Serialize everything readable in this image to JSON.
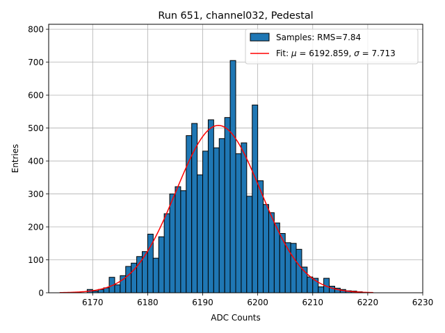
{
  "chart_data": {
    "type": "bar",
    "title": "Run 651, channel032, Pedestal",
    "xlabel": "ADC Counts",
    "ylabel": "Entries",
    "xlim": [
      6162,
      6230
    ],
    "ylim": [
      0,
      815
    ],
    "xticks": [
      6170,
      6180,
      6190,
      6200,
      6210,
      6220,
      6230
    ],
    "yticks": [
      0,
      100,
      200,
      300,
      400,
      500,
      600,
      700,
      800
    ],
    "grid": true,
    "legend_position": "top-right",
    "legend": {
      "samples_label": "Samples: RMS=7.84",
      "fit_prefix": "Fit: ",
      "mu_symbol": "μ",
      "fit_mu_text": " = 6192.859, ",
      "sigma_symbol": "σ",
      "fit_sigma_text": " = 7.713"
    },
    "series": [
      {
        "name": "Samples: RMS=7.84",
        "kind": "histogram",
        "bin_width": 1,
        "bin_edges_start": 6169,
        "values": [
          10,
          5,
          10,
          15,
          47,
          24,
          52,
          80,
          90,
          110,
          125,
          178,
          105,
          170,
          240,
          300,
          322,
          310,
          477,
          514,
          358,
          430,
          525,
          440,
          468,
          532,
          705,
          422,
          455,
          293,
          570,
          340,
          268,
          243,
          212,
          180,
          152,
          150,
          132,
          78,
          48,
          44,
          18,
          44,
          20,
          14,
          10,
          6,
          5,
          3
        ]
      },
      {
        "name": "Fit: μ = 6192.859, σ = 7.713",
        "kind": "gaussian",
        "mu": 6192.859,
        "sigma": 7.713,
        "amplitude": 508,
        "x_range": [
          6164,
          6221
        ]
      }
    ],
    "colors": {
      "bar_fill": "#1f77b4",
      "bar_edge": "#000000",
      "fit_line": "#ff0000",
      "grid": "#b0b0b0"
    }
  }
}
